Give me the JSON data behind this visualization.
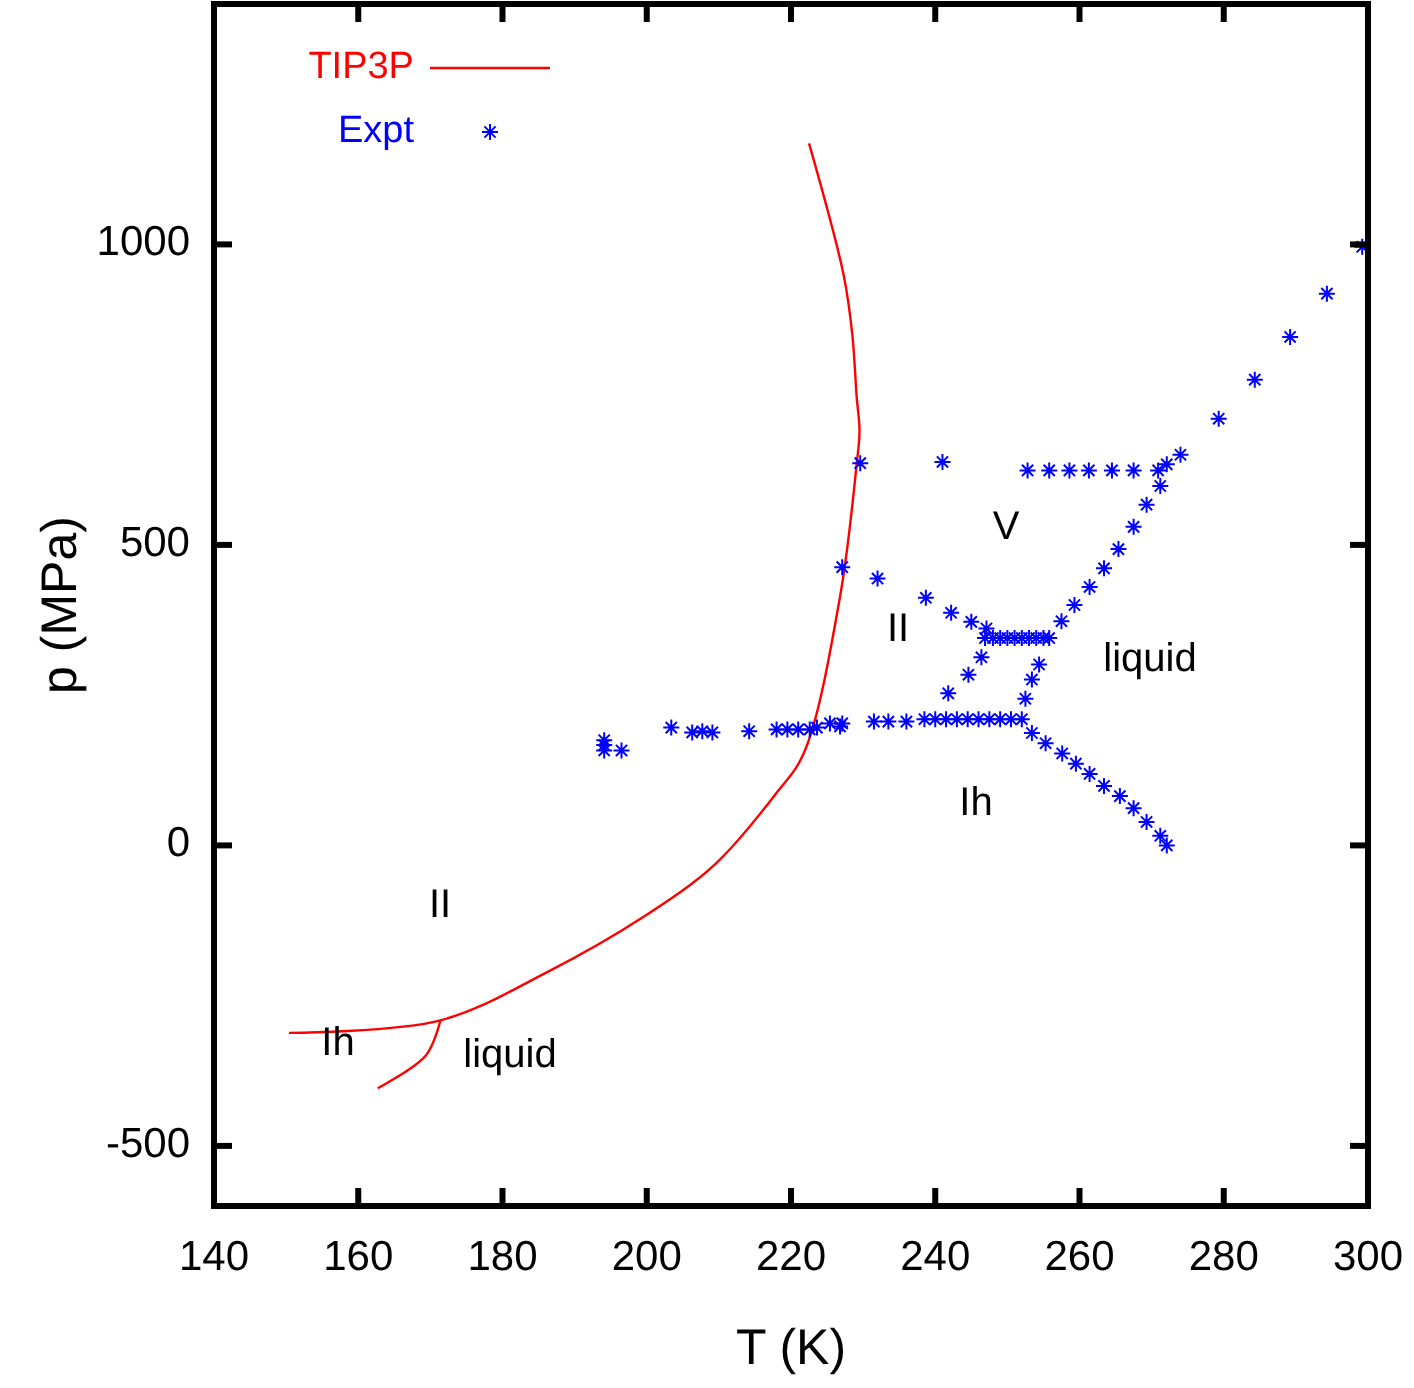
{
  "chart_data": {
    "type": "line",
    "xlabel": "T (K)",
    "ylabel": "p (MPa)",
    "xlim": [
      140,
      300
    ],
    "ylim": [
      -600,
      1400
    ],
    "xticks": [
      140,
      160,
      180,
      200,
      220,
      240,
      260,
      280,
      300
    ],
    "yticks": [
      -500,
      0,
      500,
      1000
    ],
    "grid": false,
    "legend": "top left",
    "series": [
      {
        "name": "TIP3P",
        "color": "#ff0000",
        "marker": "none",
        "line_style": "solid",
        "x": [
          150.4,
          171.4,
          186,
          199.4,
          209.5,
          217.9,
          221.8,
          226.8,
          229.1,
          229.5,
          229.1,
          228.5,
          227.3,
          222.5
        ],
        "values": [
          -312,
          -291,
          -212,
          -120,
          -31,
          86,
          154,
          414,
          634,
          690,
          747,
          850,
          949,
          1168
        ]
      },
      {
        "color": "#ff0000",
        "marker": "none",
        "line_style": "solid",
        "x": [
          171.4,
          169.4,
          162.7
        ],
        "values": [
          -291,
          -349,
          -404
        ]
      },
      {
        "name": "Expt",
        "type": "scatter",
        "color": "#0000ff",
        "marker": "cross",
        "x": [
          194.1,
          194.1,
          194.1,
          196.5,
          203.4,
          206.3,
          207.7,
          209.1,
          214.2,
          218,
          219.5,
          221,
          222.6,
          223.6,
          226.8,
          225.4,
          227.1,
          231.5,
          233.5,
          236,
          238.5,
          240,
          241.5,
          243,
          244.5,
          246,
          247.5,
          249,
          250.5,
          252,
          252.5,
          253.4,
          254.4,
          241.8,
          244.6,
          246.4,
          246.9,
          248,
          249,
          250,
          251,
          252,
          253,
          254,
          255,
          255.8,
          257.5,
          259.3,
          261.4,
          263.4,
          265.4,
          267.5,
          269.3,
          271.2,
          272.1,
          274,
          279.3,
          284.3,
          289.2,
          294.3,
          299.2,
          252.8,
          255.8,
          258.6,
          261.3,
          264.5,
          267.5,
          270.9,
          253.4,
          255.3,
          257.6,
          259.5,
          261.4,
          263.4,
          265.6,
          267.5,
          269.3,
          271.2,
          272.1,
          238.7,
          242.2,
          245,
          247.1,
          229.6,
          241,
          227.1,
          232
        ],
        "values": [
          175,
          167,
          158,
          158,
          196,
          188,
          190,
          188,
          190,
          193,
          193,
          193,
          193,
          196,
          198,
          203,
          203,
          206,
          206,
          206,
          210,
          210,
          210,
          210,
          210,
          210,
          210,
          210,
          210,
          210,
          244,
          276,
          301,
          253,
          284,
          313,
          345,
          345,
          345,
          345,
          345,
          345,
          345,
          345,
          345,
          345,
          373,
          400,
          430,
          461,
          493,
          530,
          567,
          598,
          634,
          650,
          710,
          775,
          846,
          918,
          996,
          624,
          624,
          624,
          624,
          624,
          624,
          624,
          187,
          170,
          153,
          136,
          119,
          99,
          82,
          62,
          39,
          16,
          0,
          412,
          387,
          372,
          361,
          636,
          638,
          463,
          444
        ]
      }
    ],
    "annotations": [
      "II",
      "Ih",
      "liquid",
      "V",
      "II",
      "liquid",
      "Ih"
    ]
  }
}
